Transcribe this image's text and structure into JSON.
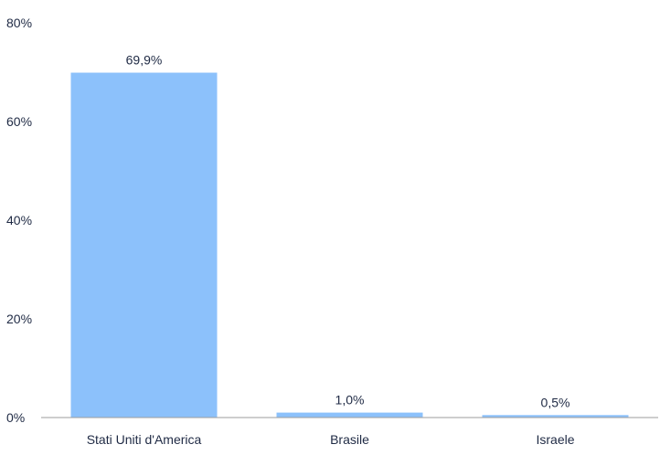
{
  "chart_data": {
    "type": "bar",
    "categories": [
      "Stati Uniti d'America",
      "Brasile",
      "Israele"
    ],
    "values": [
      69.9,
      1.0,
      0.5
    ],
    "value_labels": [
      "69,9%",
      "1,0%",
      "0,5%"
    ],
    "y_ticks": [
      0,
      20,
      40,
      60,
      80
    ],
    "y_tick_labels": [
      "0%",
      "20%",
      "40%",
      "60%",
      "80%"
    ],
    "ylim": [
      0,
      80
    ],
    "grid": false,
    "legend": "none",
    "colors": {
      "bar": "#8cc1fb",
      "text": "#1f2a44",
      "baseline": "#9e9e9e"
    }
  }
}
